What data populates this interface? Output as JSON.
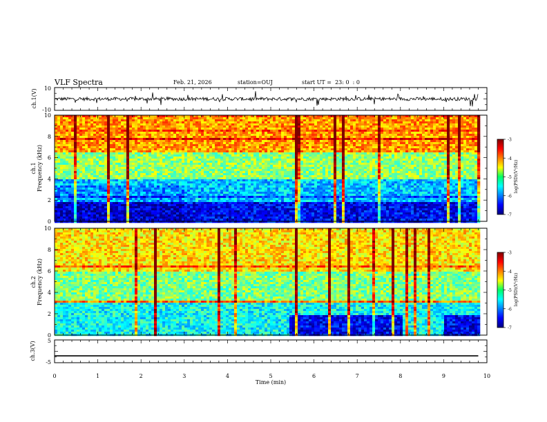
{
  "header": {
    "title": "VLF Spectra",
    "date": "Feb. 21, 2026",
    "station": "station=OUJ",
    "start": "start UT =  23: 0  : 0"
  },
  "chart_data": [
    {
      "type": "line",
      "title": "",
      "ylabel": "ch.1(V)",
      "xlim": [
        0,
        10
      ],
      "ylim": [
        -10,
        10
      ],
      "ytick_labels": [
        "10",
        "-10"
      ],
      "series": [
        {
          "name": "",
          "description": "noisy waveform centred near 0 V with occasional spikes",
          "mean": 0
        }
      ]
    },
    {
      "type": "heatmap",
      "title": "",
      "ylabel": "Frequency (kHz)",
      "channel_label": "ch.1",
      "xlim": [
        0,
        10
      ],
      "ylim": [
        0,
        10
      ],
      "ytick_labels": [
        "0",
        "2",
        "4",
        "6",
        "8",
        "10"
      ],
      "colorbar": {
        "label": "log(PSD)(V²/Hz)",
        "range": [
          -7,
          -3
        ],
        "tick_labels": [
          "-3",
          "-4",
          "-5",
          "-6",
          "-7"
        ]
      }
    },
    {
      "type": "heatmap",
      "title": "",
      "ylabel": "Frequency (kHz)",
      "channel_label": "ch.2",
      "xlim": [
        0,
        10
      ],
      "ylim": [
        0,
        10
      ],
      "ytick_labels": [
        "0",
        "2",
        "4",
        "6",
        "8",
        "10"
      ],
      "colorbar": {
        "label": "log(PSD)(V²/Hz)",
        "range": [
          -7,
          -3
        ],
        "tick_labels": [
          "-3",
          "-4",
          "-5",
          "-6",
          "-7"
        ]
      }
    },
    {
      "type": "line",
      "title": "",
      "ylabel": "ch.3(V)",
      "xlabel": "Time (min)",
      "xlim": [
        0,
        10
      ],
      "ylim": [
        -5,
        5
      ],
      "ytick_labels": [
        "5",
        "-5"
      ],
      "xtick_labels": [
        "0",
        "1",
        "2",
        "3",
        "4",
        "5",
        "6",
        "7",
        "8",
        "9",
        "10"
      ],
      "series": [
        {
          "name": "",
          "x": [
            0,
            9.8
          ],
          "y": [
            -2,
            -2
          ]
        }
      ]
    }
  ],
  "colors": {
    "axes": "#000000",
    "background": "#ffffff"
  }
}
